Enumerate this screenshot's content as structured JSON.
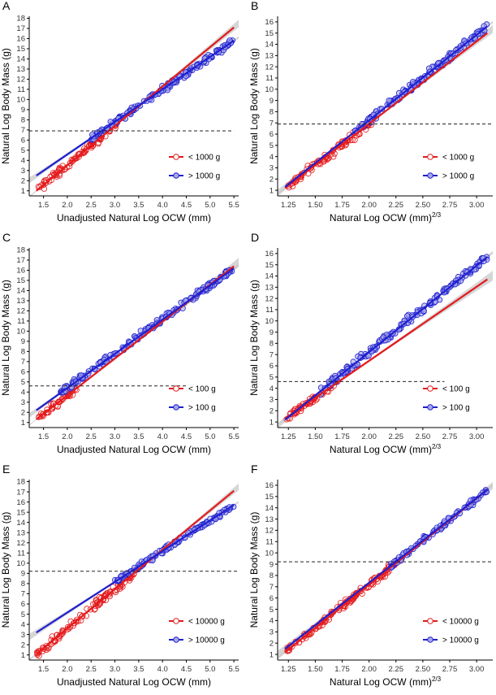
{
  "figure": {
    "panel_letters": [
      "A",
      "B",
      "C",
      "D",
      "E",
      "F"
    ]
  },
  "colors": {
    "small": "#e41a1c",
    "large": "#1f1fd0",
    "small_fill": "#f7b5b5",
    "large_fill": "#a8a8e8",
    "band": "#c8c8c8",
    "threshold": "#222222",
    "axis": "#000000"
  },
  "chart_data": [
    {
      "type": "scatter",
      "panel": "A",
      "xlabel": "Unadjusted Natural Log OCW (mm)",
      "ylabel": "Natural Log Body Mass (g)",
      "xlim": [
        1.2,
        5.6
      ],
      "ylim": [
        0.5,
        18.2
      ],
      "xticks": [
        1.5,
        2.0,
        2.5,
        3.0,
        3.5,
        4.0,
        4.5,
        5.0,
        5.5
      ],
      "xtick_labels": [
        "1.5",
        "2.0",
        "2.5",
        "3.0",
        "3.5",
        "4.0",
        "4.5",
        "5.0",
        "5.5"
      ],
      "yticks": [
        1,
        2,
        3,
        4,
        5,
        6,
        7,
        8,
        9,
        10,
        11,
        12,
        13,
        14,
        15,
        16,
        17,
        18
      ],
      "threshold_y": 6.91,
      "threshold_xmax": 5.5,
      "legend": [
        "< 1000 g",
        "> 1000 g"
      ],
      "legend_position": "bottom-right",
      "grid": false,
      "series": [
        {
          "name": "< 1000 g",
          "x_range": [
            1.35,
            3.05
          ],
          "fit": [
            [
              1.35,
              1.0
            ],
            [
              5.5,
              17.1
            ]
          ],
          "spread": 0.55
        },
        {
          "name": "> 1000 g",
          "x_range": [
            2.5,
            5.5
          ],
          "fit": [
            [
              1.35,
              2.5
            ],
            [
              5.5,
              15.8
            ]
          ],
          "spread": 0.45
        }
      ]
    },
    {
      "type": "scatter",
      "panel": "B",
      "xlabel": "Natural Log OCW (mm)",
      "xlabel_sup": "2/3",
      "ylabel": "Natural Log Body Mass (g)",
      "xlim": [
        1.15,
        3.15
      ],
      "ylim": [
        0.5,
        16.5
      ],
      "xticks": [
        1.25,
        1.5,
        1.75,
        2.0,
        2.25,
        2.5,
        2.75,
        3.0
      ],
      "xtick_labels": [
        "1.25",
        "1.50",
        "1.75",
        "2.00",
        "2.25",
        "2.50",
        "2.75",
        "3.00"
      ],
      "yticks": [
        1,
        2,
        3,
        4,
        5,
        6,
        7,
        8,
        9,
        10,
        11,
        12,
        13,
        14,
        15,
        16
      ],
      "threshold_y": 6.91,
      "threshold_xmax": 3.15,
      "legend": [
        "< 1000 g",
        "> 1000 g"
      ],
      "legend_position": "bottom-right",
      "grid": false,
      "series": [
        {
          "name": "< 1000 g",
          "x_range": [
            1.22,
            2.05
          ],
          "fit": [
            [
              1.22,
              1.2
            ],
            [
              3.1,
              15.0
            ]
          ],
          "spread": 0.55
        },
        {
          "name": "> 1000 g",
          "x_range": [
            1.85,
            3.1
          ],
          "fit": [
            [
              1.22,
              1.3
            ],
            [
              3.1,
              15.6
            ]
          ],
          "spread": 0.45
        }
      ]
    },
    {
      "type": "scatter",
      "panel": "C",
      "xlabel": "Unadjusted Natural Log OCW (mm)",
      "ylabel": "Natural Log Body Mass (g)",
      "xlim": [
        1.2,
        5.6
      ],
      "ylim": [
        0.5,
        18.2
      ],
      "xticks": [
        1.5,
        2.0,
        2.5,
        3.0,
        3.5,
        4.0,
        4.5,
        5.0,
        5.5
      ],
      "xtick_labels": [
        "1.5",
        "2.0",
        "2.5",
        "3.0",
        "3.5",
        "4.0",
        "4.5",
        "5.0",
        "5.5"
      ],
      "yticks": [
        1,
        2,
        3,
        4,
        5,
        6,
        7,
        8,
        9,
        10,
        11,
        12,
        13,
        14,
        15,
        16,
        17,
        18
      ],
      "threshold_y": 4.6,
      "threshold_xmax": 4.5,
      "legend": [
        "< 100 g",
        "> 100 g"
      ],
      "legend_position": "bottom-right",
      "grid": false,
      "series": [
        {
          "name": "< 100 g",
          "x_range": [
            1.35,
            2.2
          ],
          "fit": [
            [
              1.35,
              1.3
            ],
            [
              5.5,
              16.4
            ]
          ],
          "spread": 0.5
        },
        {
          "name": "> 100 g",
          "x_range": [
            1.85,
            5.5
          ],
          "fit": [
            [
              1.35,
              2.2
            ],
            [
              5.5,
              16.2
            ]
          ],
          "spread": 0.5
        }
      ]
    },
    {
      "type": "scatter",
      "panel": "D",
      "xlabel": "Natural Log OCW (mm)",
      "xlabel_sup": "2/3",
      "ylabel": "Natural Log Body Mass (g)",
      "xlim": [
        1.15,
        3.15
      ],
      "ylim": [
        0.5,
        16.5
      ],
      "xticks": [
        1.25,
        1.5,
        1.75,
        2.0,
        2.25,
        2.5,
        2.75,
        3.0
      ],
      "xtick_labels": [
        "1.25",
        "1.50",
        "1.75",
        "2.00",
        "2.25",
        "2.50",
        "2.75",
        "3.00"
      ],
      "yticks": [
        1,
        2,
        3,
        4,
        5,
        6,
        7,
        8,
        9,
        10,
        11,
        12,
        13,
        14,
        15,
        16
      ],
      "threshold_y": 4.6,
      "threshold_xmax": 2.7,
      "legend": [
        "< 100 g",
        "> 100 g"
      ],
      "legend_position": "bottom-right",
      "grid": false,
      "series": [
        {
          "name": "< 100 g",
          "x_range": [
            1.22,
            1.72
          ],
          "fit": [
            [
              1.22,
              1.3
            ],
            [
              3.1,
              13.7
            ]
          ],
          "spread": 0.45
        },
        {
          "name": "> 100 g",
          "x_range": [
            1.55,
            3.1
          ],
          "fit": [
            [
              1.22,
              1.2
            ],
            [
              3.1,
              15.7
            ]
          ],
          "spread": 0.55
        }
      ]
    },
    {
      "type": "scatter",
      "panel": "E",
      "xlabel": "Unadjusted Natural Log OCW (mm)",
      "ylabel": "Natural Log Body Mass (g)",
      "xlim": [
        1.2,
        5.6
      ],
      "ylim": [
        0.5,
        18.2
      ],
      "xticks": [
        1.5,
        2.0,
        2.5,
        3.0,
        3.5,
        4.0,
        4.5,
        5.0,
        5.5
      ],
      "xtick_labels": [
        "1.5",
        "2.0",
        "2.5",
        "3.0",
        "3.5",
        "4.0",
        "4.5",
        "5.0",
        "5.5"
      ],
      "yticks": [
        1,
        2,
        3,
        4,
        5,
        6,
        7,
        8,
        9,
        10,
        11,
        12,
        13,
        14,
        15,
        16,
        17,
        18
      ],
      "threshold_y": 9.21,
      "threshold_xmax": 5.6,
      "legend": [
        "< 10000 g",
        "> 10000 g"
      ],
      "legend_position": "bottom-right",
      "grid": false,
      "series": [
        {
          "name": "< 10000 g",
          "x_range": [
            1.35,
            3.45
          ],
          "fit": [
            [
              1.35,
              1.1
            ],
            [
              5.5,
              17.1
            ]
          ],
          "spread": 0.6
        },
        {
          "name": "> 10000 g",
          "x_range": [
            3.0,
            5.5
          ],
          "fit": [
            [
              1.35,
              3.2
            ],
            [
              5.5,
              15.7
            ]
          ],
          "spread": 0.4
        }
      ]
    },
    {
      "type": "scatter",
      "panel": "F",
      "xlabel": "Natural Log OCW (mm)",
      "xlabel_sup": "2/3",
      "ylabel": "Natural Log Body Mass (g)",
      "xlim": [
        1.15,
        3.15
      ],
      "ylim": [
        0.5,
        16.5
      ],
      "xticks": [
        1.25,
        1.5,
        1.75,
        2.0,
        2.25,
        2.5,
        2.75,
        3.0
      ],
      "xtick_labels": [
        "1.25",
        "1.50",
        "1.75",
        "2.00",
        "2.25",
        "2.50",
        "2.75",
        "3.00"
      ],
      "yticks": [
        1,
        2,
        3,
        4,
        5,
        6,
        7,
        8,
        9,
        10,
        11,
        12,
        13,
        14,
        15,
        16
      ],
      "threshold_y": 9.21,
      "threshold_xmax": 3.15,
      "legend": [
        "< 10000 g",
        "> 10000 g"
      ],
      "legend_position": "bottom-right",
      "grid": false,
      "series": [
        {
          "name": "< 10000 g",
          "x_range": [
            1.22,
            2.3
          ],
          "fit": [
            [
              1.22,
              1.2
            ],
            [
              3.1,
              15.6
            ]
          ],
          "spread": 0.5
        },
        {
          "name": "> 10000 g",
          "x_range": [
            2.2,
            3.1
          ],
          "fit": [
            [
              1.22,
              1.5
            ],
            [
              3.1,
              15.6
            ]
          ],
          "spread": 0.4
        }
      ]
    }
  ]
}
